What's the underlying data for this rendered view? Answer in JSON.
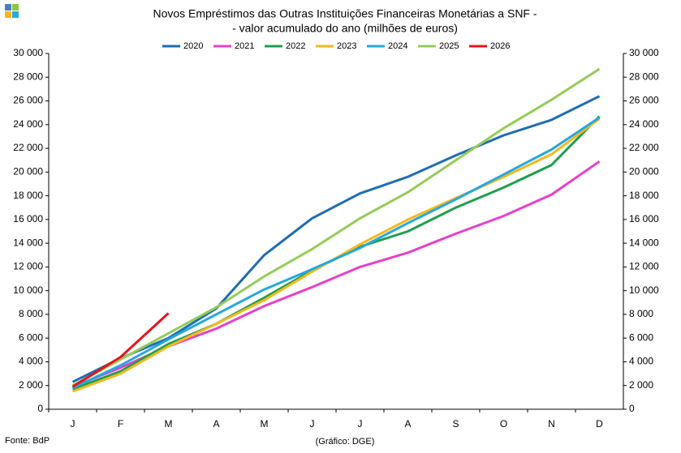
{
  "chart_data": {
    "type": "line",
    "title": [
      "Novos Empréstimos das Outras Instituições Financeiras Monetárias a SNF -",
      "- valor acumulado do ano (milhões de euros)"
    ],
    "categories": [
      "J",
      "F",
      "M",
      "A",
      "M",
      "J",
      "J",
      "A",
      "S",
      "O",
      "N",
      "D"
    ],
    "series": [
      {
        "name": "2020",
        "color": "#1f6db3",
        "values": [
          2300,
          4300,
          6000,
          8500,
          13000,
          16100,
          18200,
          19600,
          21400,
          23100,
          24400,
          26400
        ]
      },
      {
        "name": "2021",
        "color": "#e840c8",
        "values": [
          1900,
          3500,
          5300,
          6800,
          8700,
          10300,
          12000,
          13200,
          14800,
          16300,
          18100,
          20900
        ]
      },
      {
        "name": "2022",
        "color": "#1e9e4d",
        "values": [
          1700,
          3200,
          5500,
          7200,
          9400,
          11700,
          13700,
          15000,
          17000,
          18700,
          20600,
          24700
        ]
      },
      {
        "name": "2023",
        "color": "#f5b81b",
        "values": [
          1500,
          3000,
          5300,
          7200,
          9200,
          11600,
          13900,
          16000,
          17800,
          19600,
          21500,
          24500
        ]
      },
      {
        "name": "2024",
        "color": "#25a8e0",
        "values": [
          1800,
          3700,
          5900,
          8000,
          10100,
          11800,
          13600,
          15700,
          17700,
          19800,
          21900,
          24600
        ]
      },
      {
        "name": "2025",
        "color": "#94cc57",
        "values": [
          2000,
          4200,
          6400,
          8600,
          11200,
          13500,
          16100,
          18300,
          21000,
          23700,
          26100,
          28700
        ]
      },
      {
        "name": "2026",
        "color": "#e8141b",
        "values": [
          1900,
          4400,
          8100,
          null,
          null,
          null,
          null,
          null,
          null,
          null,
          null,
          null
        ]
      }
    ],
    "ylim": [
      0,
      30000
    ],
    "yticks": [
      0,
      {
        "value": 2000,
        "label": "2 000"
      },
      {
        "value": 4000,
        "label": "4 000"
      },
      {
        "value": 6000,
        "label": "6 000"
      },
      {
        "value": 8000,
        "label": "8 000"
      },
      {
        "value": 10000,
        "label": "10 000"
      },
      {
        "value": 12000,
        "label": "12 000"
      },
      {
        "value": 14000,
        "label": "14 000"
      },
      {
        "value": 16000,
        "label": "16 000"
      },
      {
        "value": 18000,
        "label": "18 000"
      },
      {
        "value": 20000,
        "label": "20 000"
      },
      {
        "value": 22000,
        "label": "22 000"
      },
      {
        "value": 24000,
        "label": "24 000"
      },
      {
        "value": 26000,
        "label": "26 000"
      },
      {
        "value": 28000,
        "label": "28 000"
      },
      {
        "value": 30000,
        "label": "30 000"
      }
    ],
    "y2lim": [
      0,
      30000
    ],
    "y2ticks": [
      0,
      {
        "value": 2000,
        "label": "2 000"
      },
      {
        "value": 4000,
        "label": "4 000"
      },
      {
        "value": 6000,
        "label": "6 000"
      },
      {
        "value": 8000,
        "label": "8 000"
      },
      {
        "value": 10000,
        "label": "10 000"
      },
      {
        "value": 12000,
        "label": "12 000"
      },
      {
        "value": 14000,
        "label": "14 000"
      },
      {
        "value": 16000,
        "label": "16 000"
      },
      {
        "value": 18000,
        "label": "18 000"
      },
      {
        "value": 20000,
        "label": "20 000"
      },
      {
        "value": 22000,
        "label": "22 000"
      },
      {
        "value": 24000,
        "label": "24 000"
      },
      {
        "value": 26000,
        "label": "26 000"
      },
      {
        "value": 28000,
        "label": "28 000"
      },
      {
        "value": 30000,
        "label": "30 000"
      }
    ],
    "grid": false,
    "legend": "top",
    "source": "Fonte: BdP",
    "credit": "(Gráfico: DGE)"
  }
}
